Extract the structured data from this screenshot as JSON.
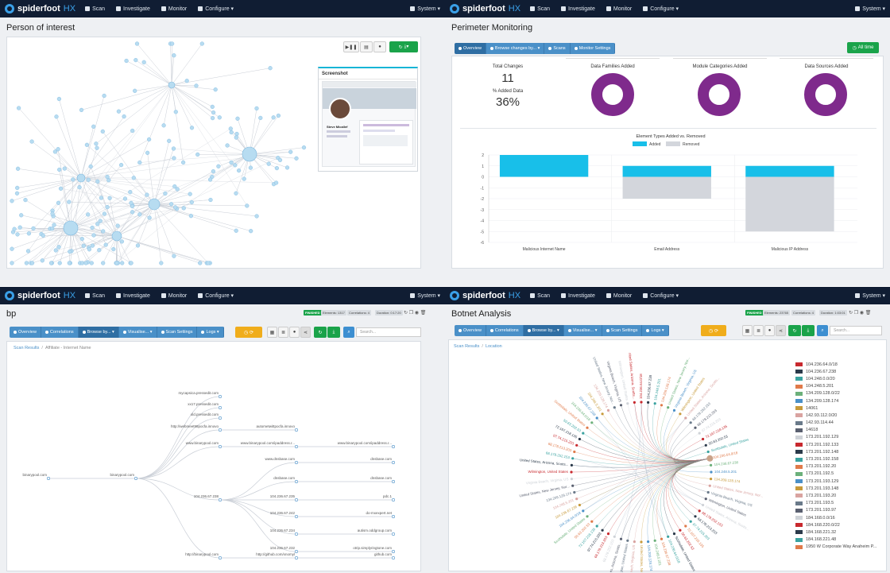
{
  "app": {
    "brand": "spiderfoot",
    "brand_suffix": "HX",
    "nav": [
      "Scan",
      "Investigate",
      "Monitor",
      "Configure ▾"
    ],
    "user": "System ▾"
  },
  "q1": {
    "title": "Person of interest",
    "screenshot_title": "Screenshot",
    "profile_name": "Steve Micallef"
  },
  "q2": {
    "title": "Perimeter Monitoring",
    "tabs": [
      "Overview",
      "Browse changes by... ▾",
      "Scans",
      "Monitor Settings"
    ],
    "all_time": "All time",
    "total_changes_label": "Total Changes",
    "total_changes": "11",
    "added_data_label": "% Added Data",
    "added_data": "36%",
    "donuts": [
      "Data Families Added",
      "Module Categories Added",
      "Data Sources Added"
    ],
    "chart_data": {
      "type": "bar",
      "title": "Element Types Added vs. Removed",
      "categories": [
        "Malicious Internet Name",
        "Email Address",
        "Malicious IP Address"
      ],
      "series": [
        {
          "name": "Added",
          "values": [
            2,
            1,
            1
          ]
        },
        {
          "name": "Removed",
          "values": [
            0,
            -2,
            -5
          ]
        }
      ],
      "ylim": [
        -6,
        2
      ],
      "yticks": [
        "2",
        "1",
        "0",
        "-1",
        "-2",
        "-3",
        "-4",
        "-5",
        "-6"
      ],
      "colors": {
        "Added": "#18bfe9",
        "Removed": "#d3d6dc"
      }
    }
  },
  "q3": {
    "title": "bp",
    "badges": [
      "FINISHED",
      "Elements: 1317",
      "Correlations: 4",
      "Duration: 0:17:20"
    ],
    "tabs": [
      "Overview",
      "Correlations",
      "Browse by... ▾",
      "Visualise... ▾",
      "Scan Settings",
      "Logs ▾"
    ],
    "search_placeholder": "Search...",
    "breadcrumb": [
      "Scan Results",
      "Affiliate - Internet Name"
    ],
    "tree": {
      "root": "binarypool.com",
      "mid": "binarypool.com",
      "level2": [
        "mycapsica.pressedit.com",
        "xx17.pressedit.com",
        "old.pressedit.com",
        "http://webmeet98pocfa.innovo",
        "www.binarypool.com",
        "104.236.67.238",
        "http://binarypool.com"
      ],
      "level3": [
        "autometwittpocfa.innovo",
        "www.binarypool.com/ipaddress.r...",
        "www.dnsbase.com",
        "dnsbase.com",
        "104.236.67.235",
        "104.236.67.242",
        "104.236.67.234",
        "104.236.67.232",
        "http://github.com/xnomyl"
      ],
      "level4": [
        "www.binarypool.com/ipaddress.r...",
        "dnsbase.com",
        "dnsbase.com",
        "pdc.1",
        "do-mxexpert.net",
        "autism.oddgroup.com",
        "otrip.simplyringtone.com",
        "github.com"
      ]
    }
  },
  "q4": {
    "title": "Botnet Analysis",
    "badges": [
      "FINISHED",
      "Elements: 23765",
      "Correlations: 4",
      "Duration: 1:03:01"
    ],
    "tabs": [
      "Overview",
      "Correlations",
      "Browse by... ▾",
      "Visualise... ▾",
      "Scan Settings",
      "Logs ▾"
    ],
    "search_placeholder": "Search...",
    "breadcrumb": [
      "Scan Results",
      "Location"
    ],
    "legend": [
      {
        "label": "104.236.64.0/18",
        "color": "#c8292e"
      },
      {
        "label": "104.236.67.238",
        "color": "#2b3a4a"
      },
      {
        "label": "104.248.0.0/20",
        "color": "#3aa3a0"
      },
      {
        "label": "104.248.5.201",
        "color": "#e07a4a"
      },
      {
        "label": "134.209.128.0/22",
        "color": "#6bb07a"
      },
      {
        "label": "134.209.128.174",
        "color": "#4a90c8"
      },
      {
        "label": "14061",
        "color": "#c79a3a"
      },
      {
        "label": "142.93.112.0/20",
        "color": "#d9a3a0"
      },
      {
        "label": "142.93.114.44",
        "color": "#6a7a8a"
      },
      {
        "label": "14618",
        "color": "#5a6070"
      },
      {
        "label": "173.201.192.129",
        "color": "#cfd3d8"
      },
      {
        "label": "173.201.192.133",
        "color": "#c8292e"
      },
      {
        "label": "173.201.192.148",
        "color": "#2b3a4a"
      },
      {
        "label": "173.201.192.158",
        "color": "#3aa3a0"
      },
      {
        "label": "173.201.192.20",
        "color": "#e07a4a"
      },
      {
        "label": "173.201.192.5",
        "color": "#6bb07a"
      },
      {
        "label": "173.201.193.129",
        "color": "#4a90c8"
      },
      {
        "label": "173.201.193.148",
        "color": "#c79a3a"
      },
      {
        "label": "173.201.193.20",
        "color": "#d9a3a0"
      },
      {
        "label": "173.201.193.5",
        "color": "#6a7a8a"
      },
      {
        "label": "173.201.193.97",
        "color": "#5a6070"
      },
      {
        "label": "184.168.0.0/16",
        "color": "#cfd3d8"
      },
      {
        "label": "184.168.220.0/22",
        "color": "#c8292e"
      },
      {
        "label": "184.168.221.32",
        "color": "#2b3a4a"
      },
      {
        "label": "184.168.221.48",
        "color": "#3aa3a0"
      },
      {
        "label": "1950 W Corporate Way Anaheim P...",
        "color": "#e07a4a"
      }
    ],
    "chord_labels": [
      "104.236.64.0/18",
      "104.236.67.238",
      "104.248.5.201",
      "134.209.128.174",
      "United States, New Jersey, Nor...",
      "Virginia Beach, Virginia, US",
      "Wilmington, United States",
      "United States, Arizona, Scotts...",
      "68.178.252.153",
      "68.178.213.203",
      "97.74.215.203",
      "72.167.218.135",
      "50.63.202.53",
      "Scottsdale, United States"
    ]
  }
}
